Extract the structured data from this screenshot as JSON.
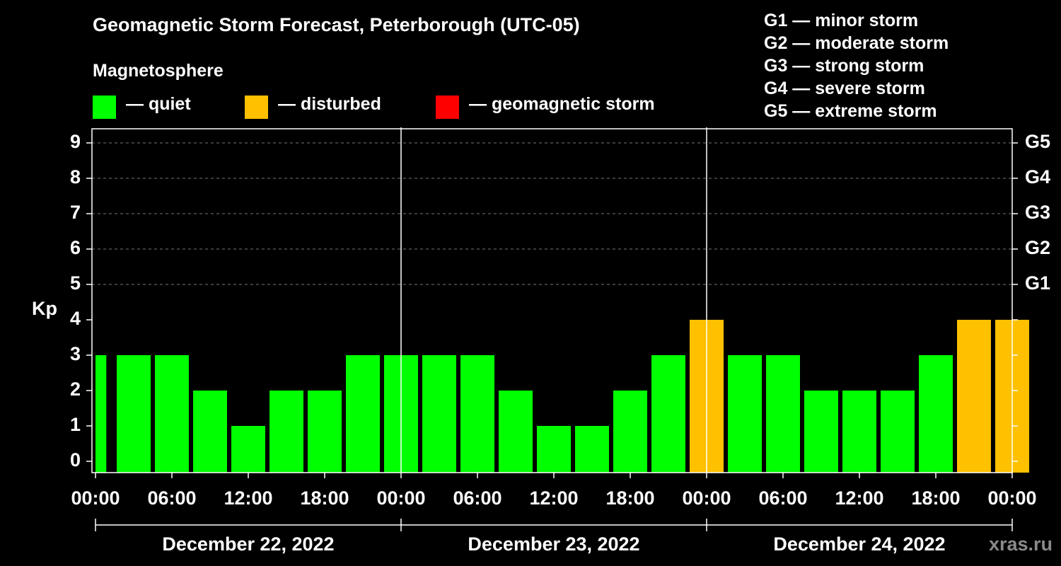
{
  "title": "Geomagnetic Storm Forecast, Peterborough (UTC-05)",
  "legend": {
    "title": "Magnetosphere",
    "items": [
      {
        "label": "— quiet",
        "color": "#00ff00"
      },
      {
        "label": "— disturbed",
        "color": "#ffc000"
      },
      {
        "label": "— geomagnetic storm",
        "color": "#ff0000"
      }
    ]
  },
  "g_scale": [
    "G1 — minor storm",
    "G2 — moderate storm",
    "G3 — strong storm",
    "G4 — severe storm",
    "G5 — extreme storm"
  ],
  "watermark": "xras.ru",
  "chart_data": {
    "type": "bar",
    "title": "Geomagnetic Storm Forecast, Peterborough (UTC-05)",
    "ylabel": "Kp",
    "xlabel": "",
    "ylim": [
      0,
      9
    ],
    "yticks": [
      "0",
      "1",
      "2",
      "3",
      "4",
      "5",
      "6",
      "7",
      "8",
      "9"
    ],
    "right_axis": [
      {
        "kp": 5,
        "label": "G1"
      },
      {
        "kp": 6,
        "label": "G2"
      },
      {
        "kp": 7,
        "label": "G3"
      },
      {
        "kp": 8,
        "label": "G4"
      },
      {
        "kp": 9,
        "label": "G5"
      }
    ],
    "grid": "dashed horizontal at Kp 5-9",
    "xticks": [
      "00:00",
      "06:00",
      "12:00",
      "18:00",
      "00:00",
      "06:00",
      "12:00",
      "18:00",
      "00:00",
      "06:00",
      "12:00",
      "18:00",
      "00:00"
    ],
    "days": [
      "December 22, 2022",
      "December 23, 2022",
      "December 24, 2022"
    ],
    "bar_hours": [
      0,
      1.5,
      4.5,
      7.5,
      10.5,
      13.5,
      16.5,
      19.5,
      22.5,
      25.5,
      28.5,
      31.5,
      34.5,
      37.5,
      40.5,
      43.5,
      46.5,
      49.5,
      52.5,
      55.5,
      58.5,
      61.5,
      64.5,
      67.5,
      70.5
    ],
    "values": [
      3,
      3,
      3,
      2,
      1,
      2,
      2,
      3,
      3,
      3,
      3,
      2,
      1,
      1,
      2,
      3,
      4,
      3,
      3,
      2,
      2,
      2,
      3,
      4,
      4
    ],
    "levels": [
      "quiet",
      "quiet",
      "quiet",
      "quiet",
      "quiet",
      "quiet",
      "quiet",
      "quiet",
      "quiet",
      "quiet",
      "quiet",
      "quiet",
      "quiet",
      "quiet",
      "quiet",
      "quiet",
      "disturbed",
      "quiet",
      "quiet",
      "quiet",
      "quiet",
      "quiet",
      "quiet",
      "disturbed",
      "disturbed"
    ]
  }
}
